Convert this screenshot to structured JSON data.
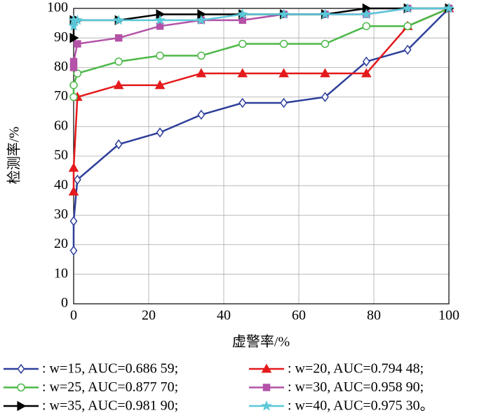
{
  "chart_data": {
    "type": "line",
    "xlabel": "虚警率/%",
    "ylabel": "检测率/%",
    "x": [
      0,
      0,
      1,
      12,
      23,
      34,
      45,
      56,
      67,
      78,
      89,
      100
    ],
    "xlim": [
      0,
      100
    ],
    "xticks": [
      0,
      20,
      40,
      60,
      80,
      100
    ],
    "ylim": [
      0,
      100
    ],
    "yticks": [
      0,
      10,
      20,
      30,
      40,
      50,
      60,
      70,
      80,
      90,
      100
    ],
    "grid": true,
    "series": [
      {
        "name": ": w=15, AUC=0.686 59;",
        "color": "#2e3f9a",
        "marker": "diamond",
        "values": [
          18,
          28,
          42,
          54,
          58,
          64,
          68,
          68,
          70,
          82,
          86,
          100
        ]
      },
      {
        "name": ": w=20, AUC=0.794 48;",
        "color": "#e41a1c",
        "marker": "triangle",
        "values": [
          38,
          46,
          70,
          74,
          74,
          78,
          78,
          78,
          78,
          78,
          94,
          100
        ]
      },
      {
        "name": ": w=25, AUC=0.877 70;",
        "color": "#4cb848",
        "marker": "circle",
        "values": [
          70,
          74,
          78,
          82,
          84,
          84,
          88,
          88,
          88,
          94,
          94,
          100
        ]
      },
      {
        "name": ": w=30, AUC=0.958 90;",
        "color": "#b452a8",
        "marker": "square",
        "values": [
          80,
          82,
          88,
          90,
          94,
          96,
          96,
          98,
          98,
          98,
          100,
          100
        ]
      },
      {
        "name": ": w=35, AUC=0.981 90;",
        "color": "#000000",
        "marker": "triangle-right",
        "values": [
          90,
          96,
          96,
          96,
          98,
          98,
          98,
          98,
          98,
          100,
          100,
          100
        ]
      },
      {
        "name": ": w=40, AUC=0.975 30。",
        "color": "#5bc8d8",
        "marker": "star",
        "values": [
          94,
          96,
          96,
          96,
          96,
          96,
          98,
          98,
          98,
          98,
          100,
          100
        ]
      }
    ]
  }
}
